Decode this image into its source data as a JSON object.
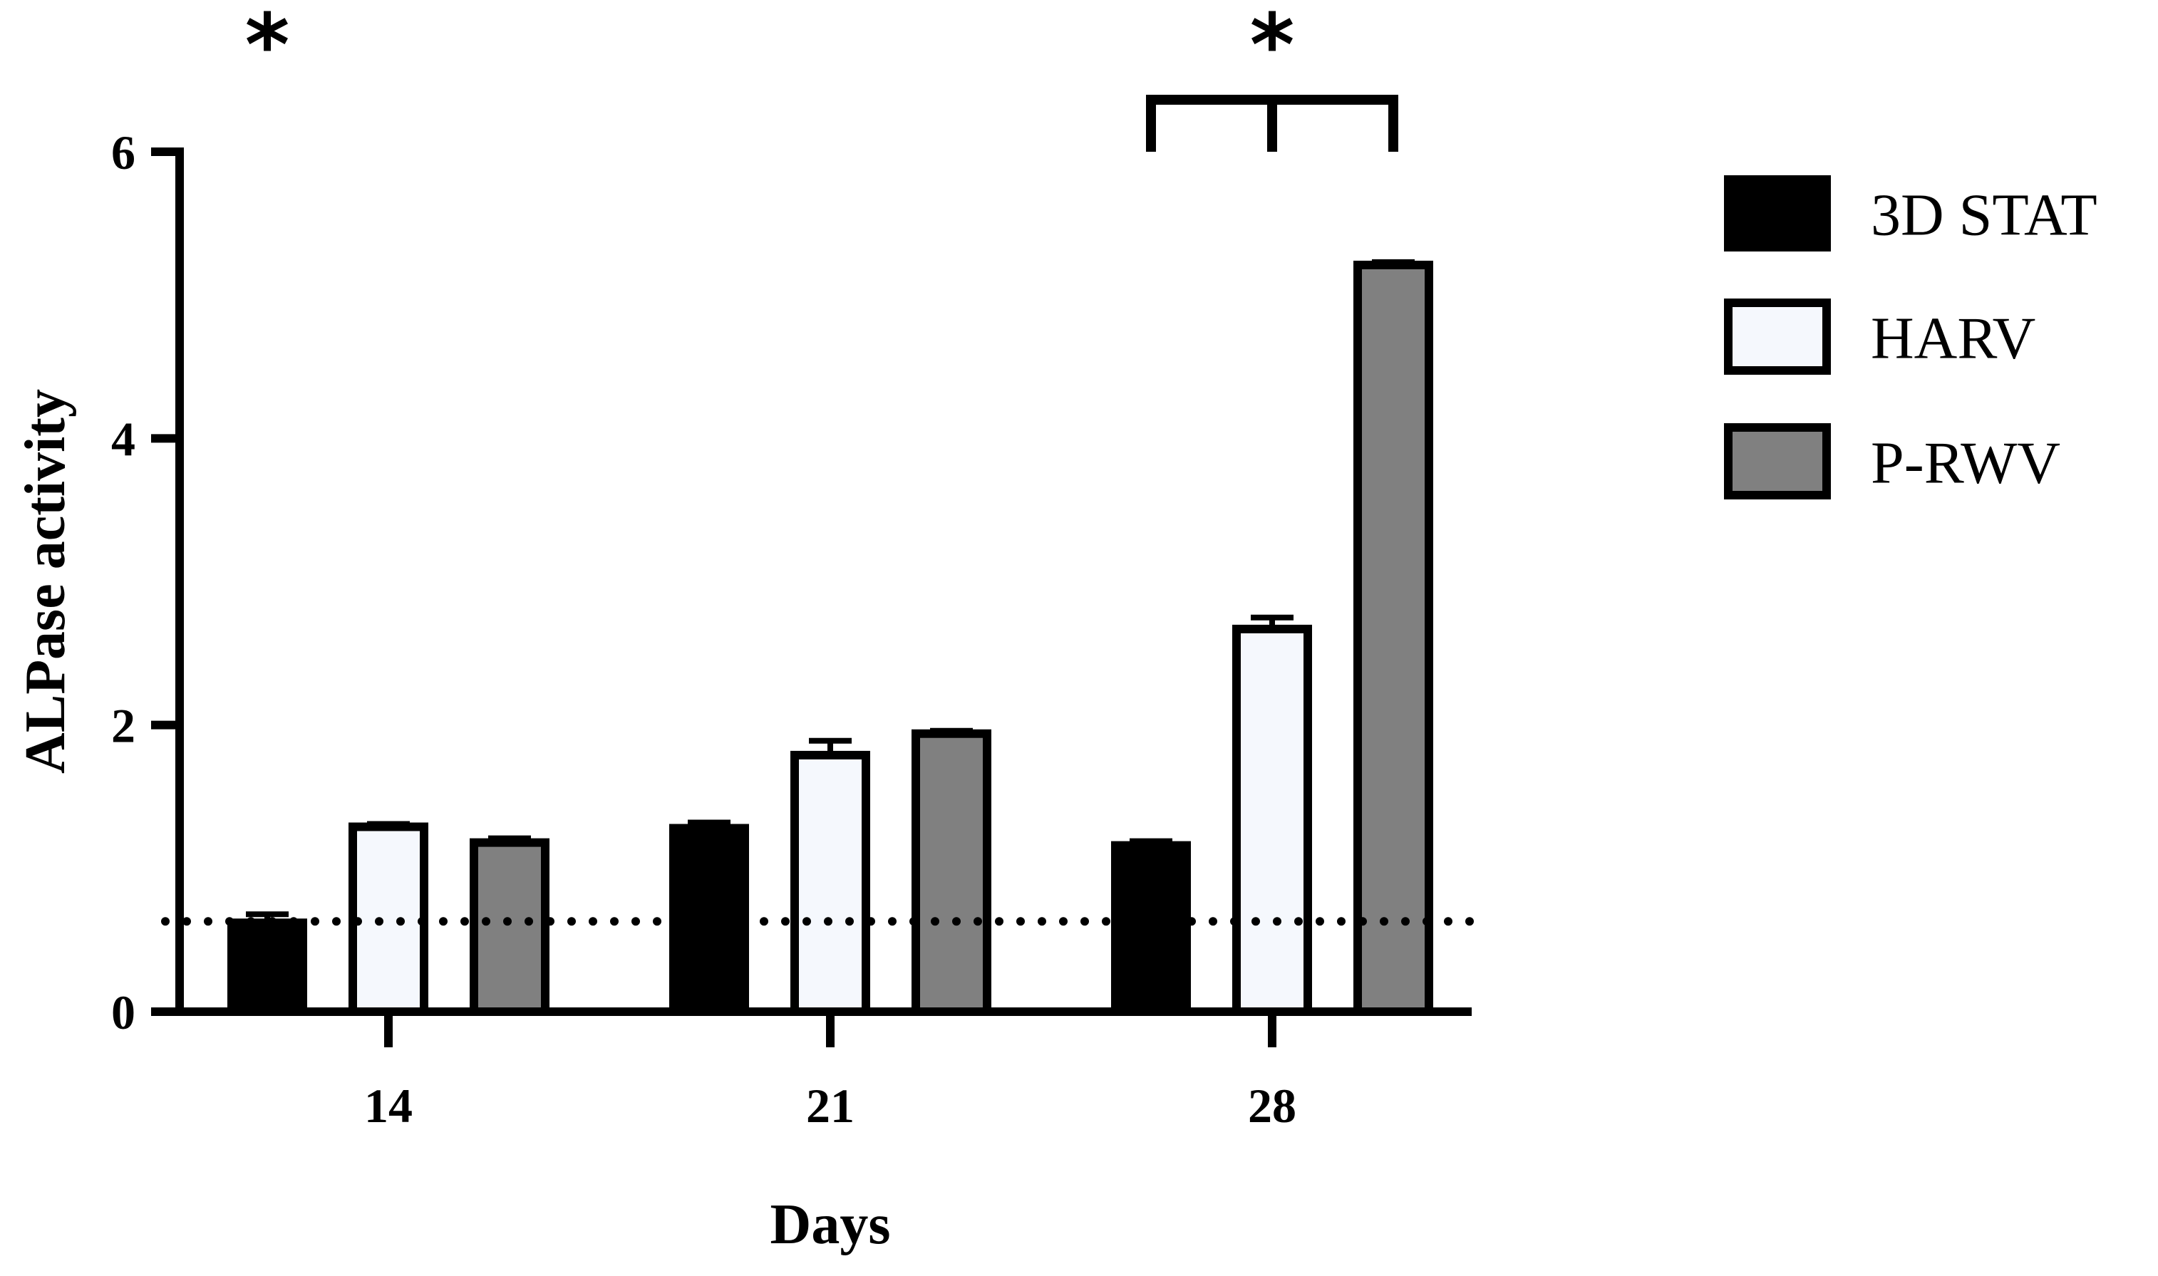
{
  "chart_data": {
    "type": "bar",
    "categories": [
      "14",
      "21",
      "28"
    ],
    "series": [
      {
        "name": "3D STAT",
        "values": [
          0.62,
          1.28,
          1.16
        ],
        "errors": [
          0.06,
          0.04,
          0.03
        ],
        "color": "#000000"
      },
      {
        "name": "HARV",
        "values": [
          1.29,
          1.79,
          2.67
        ],
        "errors": [
          0.02,
          0.1,
          0.08
        ],
        "color": "#f5f8fd"
      },
      {
        "name": "P-RWV",
        "values": [
          1.18,
          1.94,
          5.21
        ],
        "errors": [
          0.03,
          0.02,
          0.02
        ],
        "color": "#808080"
      }
    ],
    "xlabel": "Days",
    "ylabel": "ALPase activity",
    "ylim": [
      0,
      6
    ],
    "yticks": [
      0,
      2,
      4,
      6
    ],
    "reference_line": {
      "value": 0.63,
      "style": "dotted"
    },
    "grid": false,
    "legend": "right",
    "annotations": [
      {
        "text": "*",
        "position": "above day 14"
      },
      {
        "text": "*",
        "position": "above bracket at day 28"
      }
    ]
  }
}
